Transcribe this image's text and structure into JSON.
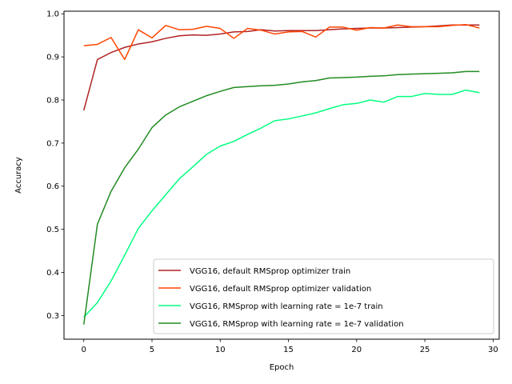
{
  "chart_data": {
    "type": "line",
    "title": "",
    "xlabel": "Epoch",
    "ylabel": "Accuracy",
    "xlim": [
      -1.45,
      30.45
    ],
    "ylim": [
      0.245,
      1.006
    ],
    "xticks": [
      0,
      5,
      10,
      15,
      20,
      25,
      30
    ],
    "yticks": [
      0.3,
      0.4,
      0.5,
      0.6,
      0.7,
      0.8,
      0.9,
      1.0
    ],
    "grid": false,
    "legend_position": "lower-right",
    "x": [
      0,
      1,
      2,
      3,
      4,
      5,
      6,
      7,
      8,
      9,
      10,
      11,
      12,
      13,
      14,
      15,
      16,
      17,
      18,
      19,
      20,
      21,
      22,
      23,
      24,
      25,
      26,
      27,
      28,
      29
    ],
    "series": [
      {
        "name": "VGG16, default RMSprop optimizer train",
        "color": "#b22222",
        "values": [
          0.776,
          0.894,
          0.91,
          0.922,
          0.93,
          0.935,
          0.943,
          0.949,
          0.951,
          0.95,
          0.953,
          0.958,
          0.959,
          0.963,
          0.96,
          0.961,
          0.961,
          0.961,
          0.963,
          0.965,
          0.966,
          0.967,
          0.967,
          0.968,
          0.969,
          0.97,
          0.972,
          0.974,
          0.974,
          0.974
        ]
      },
      {
        "name": "VGG16, default RMSprop optimizer validation",
        "color": "#ff4500",
        "values": [
          0.926,
          0.929,
          0.945,
          0.894,
          0.963,
          0.944,
          0.973,
          0.963,
          0.964,
          0.971,
          0.966,
          0.943,
          0.966,
          0.962,
          0.953,
          0.958,
          0.959,
          0.946,
          0.969,
          0.969,
          0.962,
          0.968,
          0.967,
          0.974,
          0.97,
          0.97,
          0.97,
          0.973,
          0.975,
          0.967
        ]
      },
      {
        "name": "VGG16, RMSprop with learning rate = 1e-7 train",
        "color": "#00ff7f",
        "values": [
          0.296,
          0.33,
          0.38,
          0.44,
          0.502,
          0.543,
          0.58,
          0.617,
          0.645,
          0.674,
          0.693,
          0.704,
          0.72,
          0.735,
          0.752,
          0.756,
          0.763,
          0.77,
          0.78,
          0.789,
          0.792,
          0.8,
          0.795,
          0.808,
          0.808,
          0.815,
          0.813,
          0.813,
          0.823,
          0.817
        ]
      },
      {
        "name": "VGG16, RMSprop with learning rate = 1e-7 validation",
        "color": "#228b22",
        "values": [
          0.279,
          0.512,
          0.588,
          0.643,
          0.686,
          0.736,
          0.765,
          0.784,
          0.797,
          0.81,
          0.82,
          0.829,
          0.831,
          0.833,
          0.834,
          0.837,
          0.842,
          0.845,
          0.851,
          0.852,
          0.853,
          0.855,
          0.856,
          0.859,
          0.86,
          0.861,
          0.862,
          0.863,
          0.866,
          0.866
        ]
      }
    ]
  }
}
